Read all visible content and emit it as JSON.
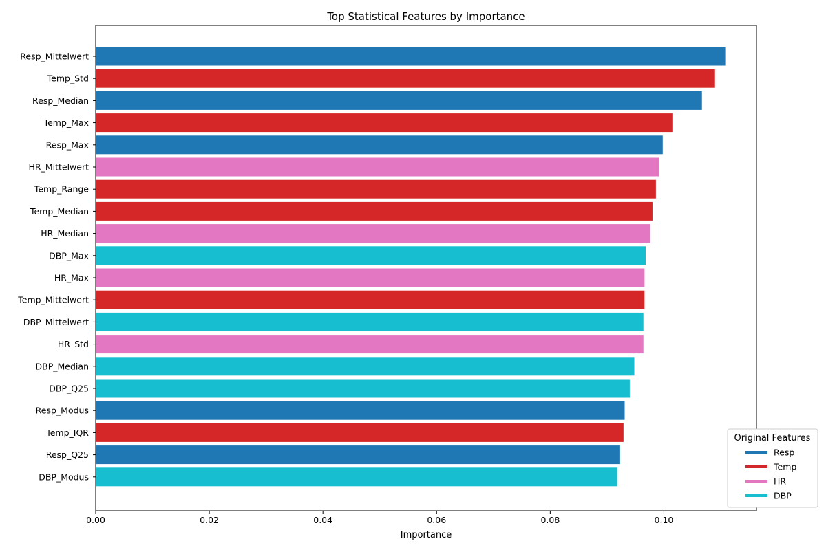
{
  "chart_data": {
    "type": "bar",
    "orientation": "horizontal",
    "title": "Top Statistical Features by Importance",
    "xlabel": "Importance",
    "ylabel": "",
    "xlim": [
      0,
      0.1163
    ],
    "xticks": [
      0.0,
      0.02,
      0.04,
      0.06,
      0.08,
      0.1
    ],
    "xtick_labels": [
      "0.00",
      "0.02",
      "0.04",
      "0.06",
      "0.08",
      "0.10"
    ],
    "grid": false,
    "legend": {
      "title": "Original Features",
      "placement": "lower-right",
      "entries": [
        {
          "name": "Resp",
          "color": "#1f77b4"
        },
        {
          "name": "Temp",
          "color": "#d62728"
        },
        {
          "name": "HR",
          "color": "#e377c2"
        },
        {
          "name": "DBP",
          "color": "#17becf"
        }
      ]
    },
    "bars": [
      {
        "label": "Resp_Mittelwert",
        "value": 0.1108,
        "group": "Resp"
      },
      {
        "label": "Temp_Std",
        "value": 0.109,
        "group": "Temp"
      },
      {
        "label": "Resp_Median",
        "value": 0.1067,
        "group": "Resp"
      },
      {
        "label": "Temp_Max",
        "value": 0.1015,
        "group": "Temp"
      },
      {
        "label": "Resp_Max",
        "value": 0.0998,
        "group": "Resp"
      },
      {
        "label": "HR_Mittelwert",
        "value": 0.0992,
        "group": "HR"
      },
      {
        "label": "Temp_Range",
        "value": 0.0986,
        "group": "Temp"
      },
      {
        "label": "Temp_Median",
        "value": 0.098,
        "group": "Temp"
      },
      {
        "label": "HR_Median",
        "value": 0.0976,
        "group": "HR"
      },
      {
        "label": "DBP_Max",
        "value": 0.0968,
        "group": "DBP"
      },
      {
        "label": "HR_Max",
        "value": 0.0966,
        "group": "HR"
      },
      {
        "label": "Temp_Mittelwert",
        "value": 0.0966,
        "group": "Temp"
      },
      {
        "label": "DBP_Mittelwert",
        "value": 0.0964,
        "group": "DBP"
      },
      {
        "label": "HR_Std",
        "value": 0.0964,
        "group": "HR"
      },
      {
        "label": "DBP_Median",
        "value": 0.0948,
        "group": "DBP"
      },
      {
        "label": "DBP_Q25",
        "value": 0.094,
        "group": "DBP"
      },
      {
        "label": "Resp_Modus",
        "value": 0.0931,
        "group": "Resp"
      },
      {
        "label": "Temp_IQR",
        "value": 0.0929,
        "group": "Temp"
      },
      {
        "label": "Resp_Q25",
        "value": 0.0923,
        "group": "Resp"
      },
      {
        "label": "DBP_Modus",
        "value": 0.0918,
        "group": "DBP"
      }
    ]
  }
}
